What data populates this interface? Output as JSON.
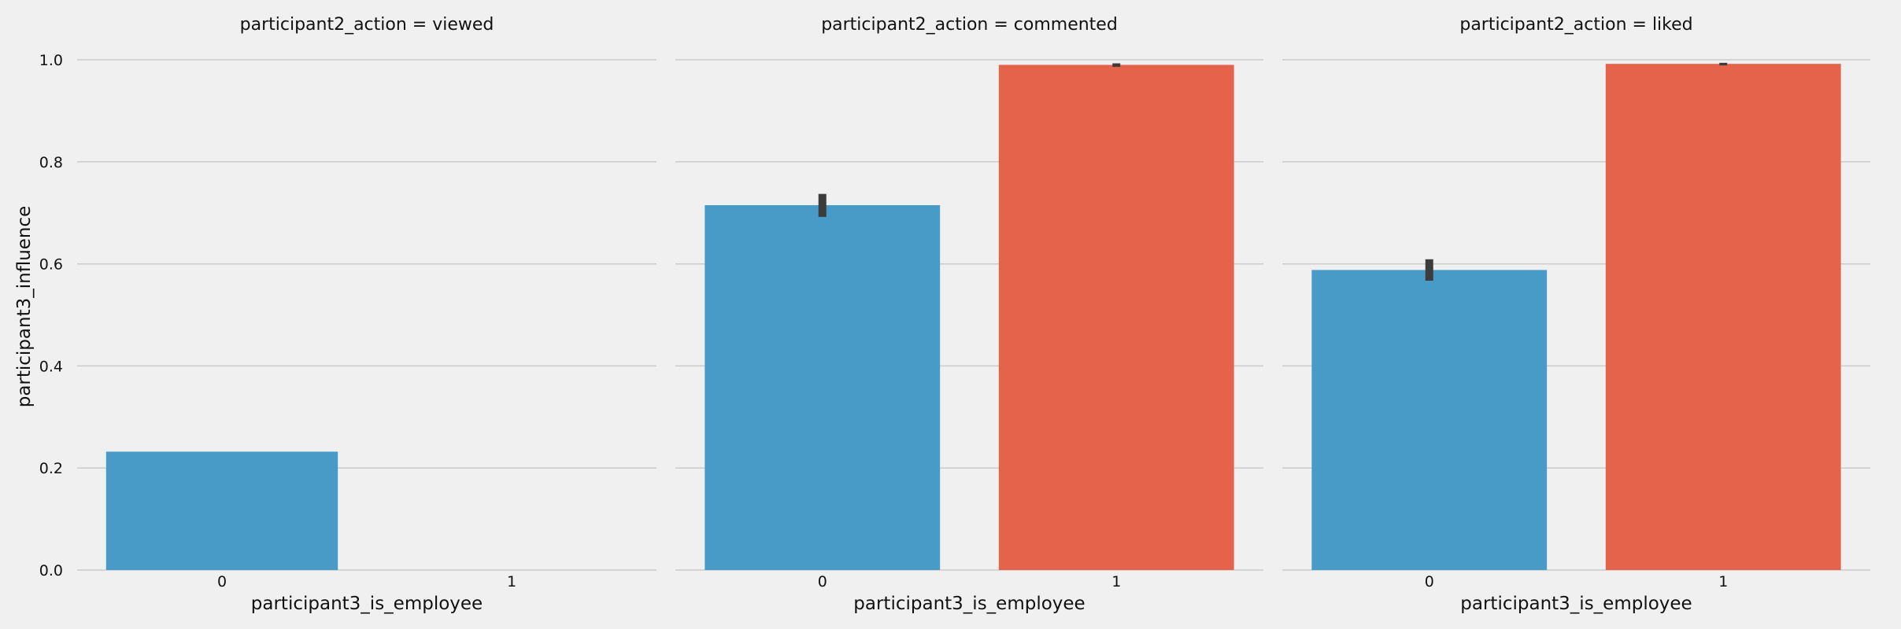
{
  "chart_data": {
    "type": "bar",
    "layout": "faceted",
    "ylabel": "participant3_influence",
    "ylim": [
      0,
      1.0
    ],
    "yticks": [
      "0.0",
      "0.2",
      "0.4",
      "0.6",
      "0.8",
      "1.0"
    ],
    "grid": "horizontal",
    "colors": {
      "0": "#479bc6",
      "1": "#e5634b",
      "errorbar": "#3c3c3c"
    },
    "facets": [
      {
        "title": "participant2_action = viewed",
        "xlabel": "participant3_is_employee",
        "categories": [
          "0",
          "1"
        ],
        "values": [
          0.232,
          null
        ],
        "error": [
          null,
          null
        ]
      },
      {
        "title": "participant2_action = commented",
        "xlabel": "participant3_is_employee",
        "categories": [
          "0",
          "1"
        ],
        "values": [
          0.715,
          0.99
        ],
        "error": [
          [
            0.692,
            0.737
          ],
          [
            0.986,
            0.993
          ]
        ]
      },
      {
        "title": "participant2_action = liked",
        "xlabel": "participant3_is_employee",
        "categories": [
          "0",
          "1"
        ],
        "values": [
          0.588,
          0.992
        ],
        "error": [
          [
            0.567,
            0.609
          ],
          [
            0.989,
            0.994
          ]
        ]
      }
    ]
  }
}
